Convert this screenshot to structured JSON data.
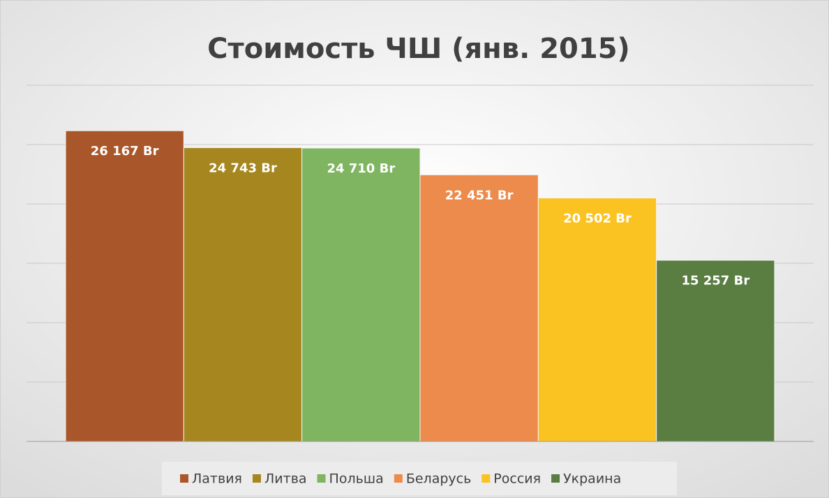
{
  "chart_data": {
    "type": "bar",
    "title": "Стоимость ЧШ (янв. 2015)",
    "categories": [
      "Латвия",
      "Литва",
      "Польша",
      "Беларусь",
      "Россия",
      "Украина"
    ],
    "values": [
      26167,
      24743,
      24710,
      22451,
      20502,
      15257
    ],
    "value_labels": [
      "26 167 Br",
      "24 743 Br",
      "24 710 Br",
      "22 451 Br",
      "20 502 Br",
      "15 257 Br"
    ],
    "colors": [
      "#a9572a",
      "#a5861f",
      "#7fb560",
      "#ec8b4c",
      "#fbc322",
      "#5a7d42"
    ],
    "ylim": [
      0,
      30000
    ],
    "yticks": [
      0,
      5000,
      10000,
      15000,
      20000,
      25000,
      30000
    ],
    "grid": true
  }
}
